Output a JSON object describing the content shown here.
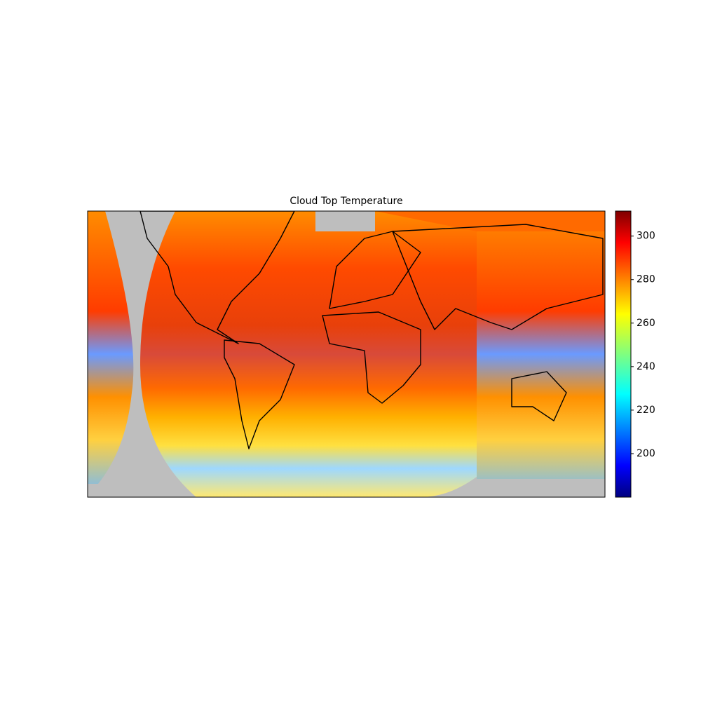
{
  "chart_data": {
    "type": "colormap-map",
    "title": "Cloud Top Temperature",
    "colormap": "jet",
    "colorbar": {
      "lim": [
        180,
        311.5
      ],
      "ticks": [
        200,
        220,
        240,
        260,
        280,
        300
      ]
    }
  }
}
